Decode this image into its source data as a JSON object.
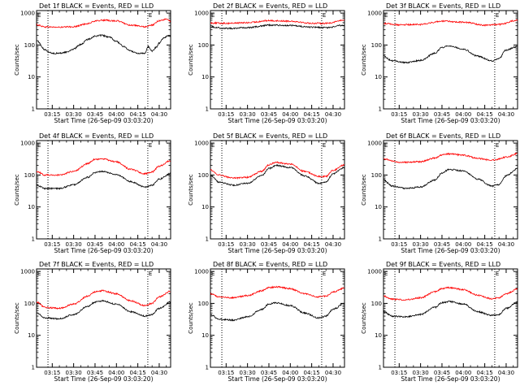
{
  "figure": {
    "xlabel": "Start Time (26-Sep-09 03:03:20)",
    "ylabel": "Counts/sec",
    "x_tick_labels": [
      "03:15",
      "03:30",
      "03:45",
      "04:00",
      "04:15",
      "04:30"
    ],
    "y_tick_labels": [
      "1",
      "10",
      "100",
      "1000"
    ],
    "colors": {
      "events": "#000000",
      "lld": "#ff0000",
      "axes": "#000000",
      "background": "#ffffff"
    }
  },
  "chart_data": [
    {
      "type": "line",
      "title": "Det 1f BLACK = Events, RED = LLD",
      "xlim": [
        "03:04",
        "04:38"
      ],
      "ylim": [
        1,
        1200
      ],
      "y_scale": "log",
      "grid": false,
      "vlines": [
        "03:12",
        "04:22"
      ],
      "markers": [
        {
          "label": "E",
          "x": "03:04"
        },
        {
          "label": "E",
          "x": "04:22"
        }
      ],
      "series": [
        {
          "label": "Events",
          "color": "#000000",
          "x": [
            "03:04",
            "03:10",
            "03:15",
            "03:20",
            "03:25",
            "03:30",
            "03:35",
            "03:40",
            "03:45",
            "03:50",
            "03:55",
            "04:00",
            "04:05",
            "04:10",
            "04:15",
            "04:18",
            "04:20",
            "04:22",
            "04:25",
            "04:28",
            "04:30",
            "04:33",
            "04:36",
            "04:38"
          ],
          "y": [
            140,
            70,
            55,
            55,
            60,
            75,
            105,
            150,
            190,
            200,
            175,
            130,
            90,
            65,
            55,
            56,
            55,
            90,
            65,
            85,
            115,
            165,
            195,
            185
          ]
        },
        {
          "label": "LLD",
          "color": "#ff0000",
          "x": [
            "03:04",
            "03:10",
            "03:20",
            "03:30",
            "03:40",
            "03:45",
            "03:50",
            "04:00",
            "04:10",
            "04:20",
            "04:25",
            "04:30",
            "04:35",
            "04:38"
          ],
          "y": [
            430,
            370,
            360,
            375,
            470,
            560,
            600,
            570,
            420,
            370,
            420,
            580,
            640,
            560
          ]
        }
      ]
    },
    {
      "type": "line",
      "title": "Det 2f BLACK = Events, RED = LLD",
      "xlim": [
        "03:04",
        "04:38"
      ],
      "ylim": [
        1,
        1200
      ],
      "y_scale": "log",
      "grid": false,
      "vlines": [
        "03:12",
        "04:22"
      ],
      "markers": [
        {
          "label": "E",
          "x": "03:04"
        },
        {
          "label": "E",
          "x": "04:22"
        }
      ],
      "series": [
        {
          "label": "Events",
          "color": "#000000",
          "x": [
            "03:04",
            "03:15",
            "03:30",
            "03:45",
            "04:00",
            "04:15",
            "04:25",
            "04:38"
          ],
          "y": [
            370,
            330,
            350,
            420,
            410,
            360,
            350,
            420
          ]
        },
        {
          "label": "LLD",
          "color": "#ff0000",
          "x": [
            "03:04",
            "03:15",
            "03:30",
            "03:45",
            "04:00",
            "04:15",
            "04:25",
            "04:38"
          ],
          "y": [
            490,
            480,
            500,
            580,
            560,
            480,
            480,
            600
          ]
        }
      ]
    },
    {
      "type": "line",
      "title": "Det 3f BLACK = Events, RED = LLD",
      "xlim": [
        "03:04",
        "04:38"
      ],
      "ylim": [
        1,
        1200
      ],
      "y_scale": "log",
      "grid": false,
      "vlines": [
        "03:12",
        "04:22"
      ],
      "markers": [
        {
          "label": "E",
          "x": "03:04"
        },
        {
          "label": "E",
          "x": "04:22"
        }
      ],
      "series": [
        {
          "label": "Events",
          "color": "#000000",
          "x": [
            "03:04",
            "03:10",
            "03:20",
            "03:30",
            "03:40",
            "03:45",
            "03:50",
            "04:00",
            "04:10",
            "04:20",
            "04:25",
            "04:30",
            "04:38"
          ],
          "y": [
            45,
            32,
            28,
            33,
            55,
            85,
            95,
            75,
            45,
            32,
            38,
            70,
            90
          ]
        },
        {
          "label": "LLD",
          "color": "#ff0000",
          "x": [
            "03:04",
            "03:15",
            "03:30",
            "03:45",
            "04:00",
            "04:15",
            "04:25",
            "04:38"
          ],
          "y": [
            470,
            430,
            440,
            560,
            520,
            420,
            440,
            600
          ]
        }
      ]
    },
    {
      "type": "line",
      "title": "Det 4f BLACK = Events, RED = LLD",
      "xlim": [
        "03:04",
        "04:38"
      ],
      "ylim": [
        1,
        1200
      ],
      "y_scale": "log",
      "grid": false,
      "vlines": [
        "03:12",
        "04:22"
      ],
      "markers": [
        {
          "label": "E",
          "x": "03:04"
        },
        {
          "label": "E",
          "x": "04:22"
        }
      ],
      "series": [
        {
          "label": "Events",
          "color": "#000000",
          "x": [
            "03:04",
            "03:10",
            "03:20",
            "03:30",
            "03:40",
            "03:45",
            "03:50",
            "04:00",
            "04:10",
            "04:20",
            "04:25",
            "04:30",
            "04:38"
          ],
          "y": [
            48,
            38,
            38,
            50,
            85,
            120,
            130,
            105,
            62,
            42,
            48,
            75,
            110
          ]
        },
        {
          "label": "LLD",
          "color": "#ff0000",
          "x": [
            "03:04",
            "03:10",
            "03:20",
            "03:30",
            "03:40",
            "03:45",
            "03:50",
            "04:00",
            "04:10",
            "04:20",
            "04:25",
            "04:30",
            "04:38"
          ],
          "y": [
            130,
            100,
            100,
            130,
            230,
            310,
            320,
            260,
            150,
            110,
            125,
            190,
            280
          ]
        }
      ]
    },
    {
      "type": "line",
      "title": "Det 5f BLACK = Events, RED = LLD",
      "xlim": [
        "03:04",
        "04:38"
      ],
      "ylim": [
        1,
        1200
      ],
      "y_scale": "log",
      "grid": false,
      "vlines": [
        "03:12",
        "04:22"
      ],
      "markers": [
        {
          "label": "E",
          "x": "03:04"
        },
        {
          "label": "E",
          "x": "04:22"
        }
      ],
      "series": [
        {
          "label": "Events",
          "color": "#000000",
          "x": [
            "03:04",
            "03:10",
            "03:20",
            "03:30",
            "03:40",
            "03:45",
            "03:50",
            "04:00",
            "04:10",
            "04:20",
            "04:25",
            "04:30",
            "04:38"
          ],
          "y": [
            100,
            60,
            48,
            55,
            95,
            160,
            200,
            170,
            95,
            55,
            60,
            110,
            170
          ]
        },
        {
          "label": "LLD",
          "color": "#ff0000",
          "x": [
            "03:04",
            "03:10",
            "03:20",
            "03:30",
            "03:40",
            "03:45",
            "03:50",
            "04:00",
            "04:10",
            "04:20",
            "04:25",
            "04:30",
            "04:38"
          ],
          "y": [
            145,
            100,
            80,
            85,
            130,
            210,
            250,
            220,
            130,
            90,
            90,
            140,
            210
          ]
        }
      ]
    },
    {
      "type": "line",
      "title": "Det 6f BLACK = Events, RED = LLD",
      "xlim": [
        "03:04",
        "04:38"
      ],
      "ylim": [
        1,
        1200
      ],
      "y_scale": "log",
      "grid": false,
      "vlines": [
        "03:12",
        "04:22"
      ],
      "markers": [
        {
          "label": "E",
          "x": "03:04"
        },
        {
          "label": "E",
          "x": "04:22"
        }
      ],
      "series": [
        {
          "label": "Events",
          "color": "#000000",
          "x": [
            "03:04",
            "03:10",
            "03:20",
            "03:30",
            "03:40",
            "03:45",
            "03:50",
            "04:00",
            "04:10",
            "04:20",
            "04:25",
            "04:30",
            "04:38"
          ],
          "y": [
            70,
            45,
            38,
            42,
            70,
            115,
            150,
            135,
            75,
            45,
            50,
            95,
            160
          ]
        },
        {
          "label": "LLD",
          "color": "#ff0000",
          "x": [
            "03:04",
            "03:15",
            "03:30",
            "03:40",
            "03:45",
            "03:50",
            "04:00",
            "04:10",
            "04:20",
            "04:30",
            "04:38"
          ],
          "y": [
            320,
            250,
            260,
            340,
            430,
            460,
            420,
            330,
            290,
            360,
            470
          ]
        }
      ]
    },
    {
      "type": "line",
      "title": "Det 7f BLACK = Events, RED = LLD",
      "xlim": [
        "03:04",
        "04:38"
      ],
      "ylim": [
        1,
        1200
      ],
      "y_scale": "log",
      "grid": false,
      "vlines": [
        "03:12",
        "04:22"
      ],
      "markers": [
        {
          "label": "E",
          "x": "03:04"
        },
        {
          "label": "E",
          "x": "04:22"
        }
      ],
      "series": [
        {
          "label": "Events",
          "color": "#000000",
          "x": [
            "03:04",
            "03:10",
            "03:20",
            "03:30",
            "03:40",
            "03:45",
            "03:50",
            "04:00",
            "04:10",
            "04:20",
            "04:25",
            "04:30",
            "04:38"
          ],
          "y": [
            50,
            35,
            33,
            45,
            80,
            110,
            120,
            95,
            55,
            40,
            45,
            70,
            110
          ]
        },
        {
          "label": "LLD",
          "color": "#ff0000",
          "x": [
            "03:04",
            "03:10",
            "03:20",
            "03:30",
            "03:40",
            "03:45",
            "03:50",
            "04:00",
            "04:10",
            "04:20",
            "04:25",
            "04:30",
            "04:38"
          ],
          "y": [
            110,
            75,
            70,
            95,
            170,
            230,
            250,
            200,
            120,
            85,
            100,
            160,
            240
          ]
        }
      ]
    },
    {
      "type": "line",
      "title": "Det 8f BLACK = Events, RED = LLD",
      "xlim": [
        "03:04",
        "04:38"
      ],
      "ylim": [
        1,
        1200
      ],
      "y_scale": "log",
      "grid": false,
      "vlines": [
        "03:12",
        "04:22"
      ],
      "markers": [
        {
          "label": "E",
          "x": "03:04"
        },
        {
          "label": "E",
          "x": "04:22"
        }
      ],
      "series": [
        {
          "label": "Events",
          "color": "#000000",
          "x": [
            "03:04",
            "03:10",
            "03:20",
            "03:30",
            "03:40",
            "03:45",
            "03:50",
            "04:00",
            "04:10",
            "04:20",
            "04:25",
            "04:30",
            "04:38"
          ],
          "y": [
            45,
            32,
            30,
            38,
            65,
            95,
            105,
            85,
            50,
            35,
            40,
            65,
            100
          ]
        },
        {
          "label": "LLD",
          "color": "#ff0000",
          "x": [
            "03:04",
            "03:10",
            "03:20",
            "03:30",
            "03:40",
            "03:45",
            "03:50",
            "04:00",
            "04:10",
            "04:20",
            "04:25",
            "04:30",
            "04:38"
          ],
          "y": [
            200,
            160,
            150,
            175,
            250,
            310,
            330,
            290,
            200,
            160,
            170,
            230,
            300
          ]
        }
      ]
    },
    {
      "type": "line",
      "title": "Det 9f BLACK = Events, RED = LLD",
      "xlim": [
        "03:04",
        "04:38"
      ],
      "ylim": [
        1,
        1200
      ],
      "y_scale": "log",
      "grid": false,
      "vlines": [
        "03:12",
        "04:22"
      ],
      "markers": [
        {
          "label": "E",
          "x": "03:04"
        },
        {
          "label": "E",
          "x": "04:22"
        }
      ],
      "series": [
        {
          "label": "Events",
          "color": "#000000",
          "x": [
            "03:04",
            "03:10",
            "03:20",
            "03:30",
            "03:40",
            "03:45",
            "03:50",
            "04:00",
            "04:10",
            "04:20",
            "04:25",
            "04:30",
            "04:38"
          ],
          "y": [
            55,
            40,
            38,
            45,
            75,
            105,
            115,
            95,
            55,
            42,
            45,
            70,
            110
          ]
        },
        {
          "label": "LLD",
          "color": "#ff0000",
          "x": [
            "03:04",
            "03:10",
            "03:20",
            "03:30",
            "03:40",
            "03:45",
            "03:50",
            "04:00",
            "04:10",
            "04:20",
            "04:25",
            "04:30",
            "04:38"
          ],
          "y": [
            170,
            135,
            130,
            150,
            230,
            290,
            310,
            270,
            180,
            140,
            150,
            200,
            280
          ]
        }
      ]
    }
  ]
}
